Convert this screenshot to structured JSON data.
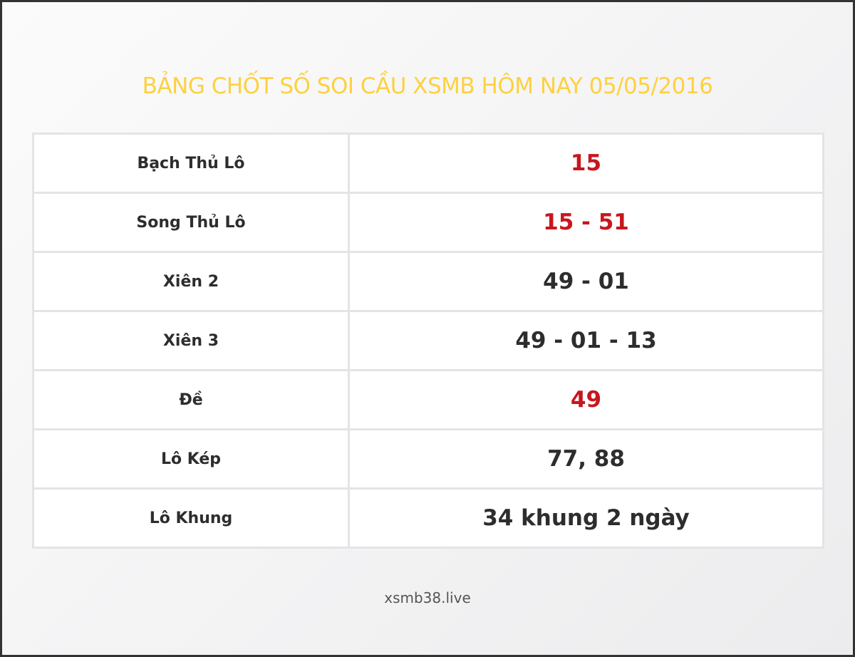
{
  "title": "BẢNG CHỐT SỐ SOI CẦU XSMB HÔM NAY 05/05/2016",
  "rows": [
    {
      "label": "Bạch Thủ Lô",
      "value": "15",
      "highlight": true
    },
    {
      "label": "Song Thủ Lô",
      "value": "15 - 51",
      "highlight": true
    },
    {
      "label": "Xiên 2",
      "value": "49 - 01",
      "highlight": false
    },
    {
      "label": "Xiên 3",
      "value": "49 - 01 - 13",
      "highlight": false
    },
    {
      "label": "Đề",
      "value": "49",
      "highlight": true
    },
    {
      "label": "Lô Kép",
      "value": "77, 88",
      "highlight": false
    },
    {
      "label": "Lô Khung",
      "value": "34 khung 2 ngày",
      "highlight": false
    }
  ],
  "footer": "xsmb38.live",
  "colors": {
    "title": "#fdd13f",
    "highlight": "#c8161d",
    "text": "#2d2d2d"
  }
}
